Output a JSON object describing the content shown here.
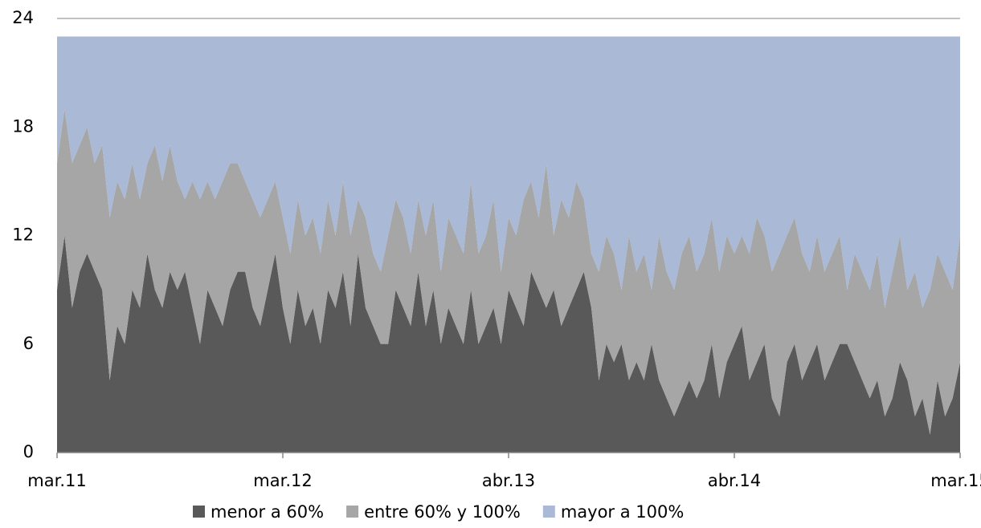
{
  "chart_data": {
    "type": "stacked_area",
    "categories": [
      "mar.11",
      null,
      null,
      null,
      null,
      null,
      null,
      null,
      null,
      null,
      null,
      null,
      null,
      null,
      null,
      null,
      null,
      null,
      null,
      null,
      null,
      null,
      null,
      null,
      null,
      null,
      null,
      null,
      null,
      null,
      "mar.12",
      null,
      null,
      null,
      null,
      null,
      null,
      null,
      null,
      null,
      null,
      null,
      null,
      null,
      null,
      null,
      null,
      null,
      null,
      null,
      null,
      null,
      null,
      null,
      null,
      null,
      null,
      null,
      null,
      null,
      "abr.13",
      null,
      null,
      null,
      null,
      null,
      null,
      null,
      null,
      null,
      null,
      null,
      null,
      null,
      null,
      null,
      null,
      null,
      null,
      null,
      null,
      null,
      null,
      null,
      null,
      null,
      null,
      null,
      null,
      null,
      "abr.14",
      null,
      null,
      null,
      null,
      null,
      null,
      null,
      null,
      null,
      null,
      null,
      null,
      null,
      null,
      null,
      null,
      null,
      null,
      null,
      null,
      null,
      null,
      null,
      null,
      null,
      null,
      null,
      null,
      null,
      "mar.15"
    ],
    "series": [
      {
        "name": "menor a 60%",
        "color": "#595959",
        "values": [
          9,
          12,
          8,
          10,
          11,
          10,
          9,
          4,
          7,
          6,
          9,
          8,
          11,
          9,
          8,
          10,
          9,
          10,
          8,
          6,
          9,
          8,
          7,
          9,
          10,
          10,
          8,
          7,
          9,
          11,
          8,
          6,
          9,
          7,
          8,
          6,
          9,
          8,
          10,
          7,
          11,
          8,
          7,
          6,
          6,
          9,
          8,
          7,
          10,
          7,
          9,
          6,
          8,
          7,
          6,
          9,
          6,
          7,
          8,
          6,
          9,
          8,
          7,
          10,
          9,
          8,
          9,
          7,
          8,
          9,
          10,
          8,
          4,
          6,
          5,
          6,
          4,
          5,
          4,
          6,
          4,
          3,
          2,
          3,
          4,
          3,
          4,
          6,
          3,
          5,
          6,
          7,
          4,
          5,
          6,
          3,
          2,
          5,
          6,
          4,
          5,
          6,
          4,
          5,
          6,
          6,
          5,
          4,
          3,
          4,
          2,
          3,
          5,
          4,
          2,
          3,
          1,
          4,
          2,
          3,
          5
        ]
      },
      {
        "name": "entre 60% y 100%",
        "color": "#a6a6a6",
        "values": [
          7,
          7,
          8,
          7,
          7,
          6,
          8,
          9,
          8,
          8,
          7,
          6,
          5,
          8,
          7,
          7,
          6,
          4,
          7,
          8,
          6,
          6,
          8,
          7,
          6,
          5,
          6,
          6,
          5,
          4,
          5,
          5,
          5,
          5,
          5,
          5,
          5,
          4,
          5,
          5,
          3,
          5,
          4,
          4,
          6,
          5,
          5,
          4,
          4,
          5,
          5,
          4,
          5,
          5,
          5,
          6,
          5,
          5,
          6,
          4,
          4,
          4,
          7,
          5,
          4,
          8,
          3,
          7,
          5,
          6,
          4,
          3,
          6,
          6,
          6,
          3,
          8,
          5,
          7,
          3,
          8,
          7,
          7,
          8,
          8,
          7,
          7,
          7,
          7,
          7,
          5,
          5,
          7,
          8,
          6,
          7,
          9,
          7,
          7,
          7,
          5,
          6,
          6,
          6,
          6,
          3,
          6,
          6,
          6,
          7,
          6,
          7,
          7,
          5,
          8,
          5,
          8,
          7,
          8,
          6,
          7
        ]
      },
      {
        "name": "mayor a 100%",
        "color": "#a9b9d6",
        "values": [
          7,
          4,
          7,
          6,
          5,
          7,
          6,
          10,
          8,
          9,
          7,
          9,
          7,
          6,
          8,
          6,
          8,
          9,
          8,
          9,
          8,
          9,
          8,
          7,
          7,
          8,
          9,
          10,
          9,
          8,
          10,
          12,
          9,
          11,
          10,
          12,
          9,
          11,
          8,
          11,
          9,
          10,
          12,
          13,
          11,
          9,
          10,
          12,
          9,
          11,
          9,
          13,
          10,
          11,
          12,
          8,
          12,
          11,
          9,
          13,
          10,
          11,
          9,
          8,
          10,
          7,
          11,
          9,
          10,
          8,
          9,
          12,
          13,
          11,
          12,
          14,
          11,
          13,
          12,
          14,
          11,
          13,
          14,
          12,
          11,
          13,
          12,
          10,
          13,
          11,
          12,
          11,
          12,
          10,
          11,
          13,
          12,
          11,
          10,
          12,
          13,
          11,
          13,
          12,
          11,
          14,
          12,
          13,
          14,
          12,
          15,
          13,
          11,
          14,
          13,
          15,
          14,
          12,
          13,
          14,
          11
        ]
      }
    ],
    "ylim": [
      0,
      24
    ],
    "yticks": [
      0,
      6,
      12,
      18,
      24
    ],
    "grid": true,
    "legend": "bottom"
  }
}
